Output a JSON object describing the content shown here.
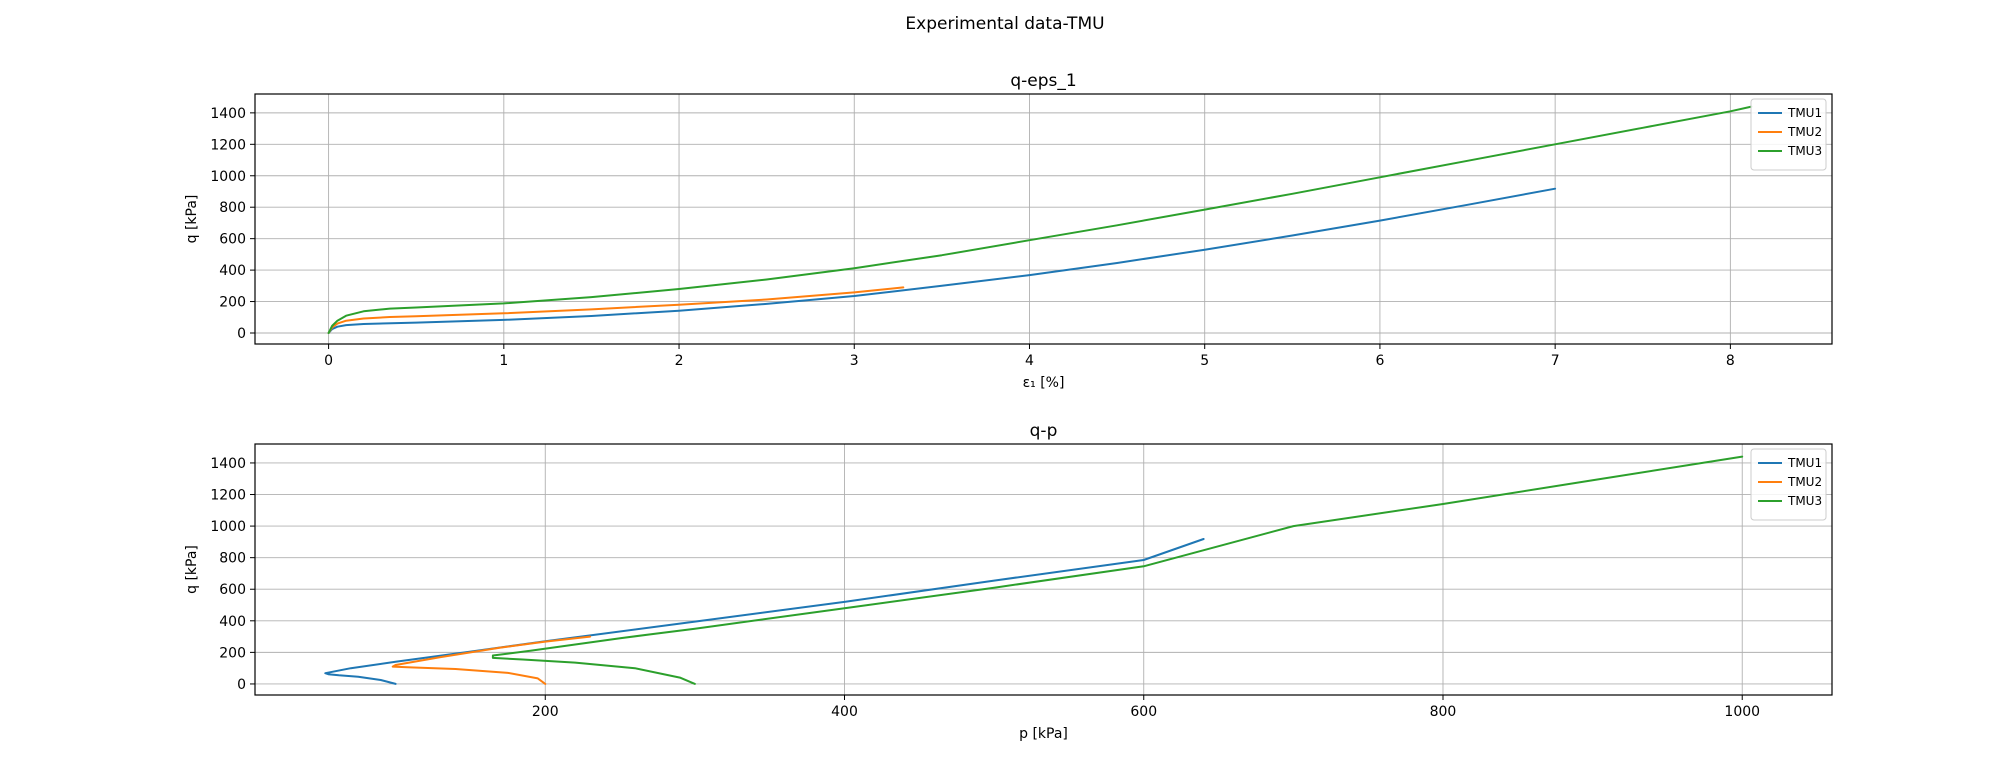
{
  "suptitle": "Experimental data-TMU",
  "chart_data": [
    {
      "type": "line",
      "title": "q-eps_1",
      "xlabel": "ε₁ [%]",
      "ylabel": "q [kPa]",
      "xlim": [
        -0.42,
        8.58
      ],
      "ylim": [
        -70,
        1520
      ],
      "xticks": [
        "0",
        "1",
        "2",
        "3",
        "4",
        "5",
        "6",
        "7",
        "8"
      ],
      "yticks": [
        "0",
        "200",
        "400",
        "600",
        "800",
        "1000",
        "1200",
        "1400"
      ],
      "grid": true,
      "legend_position": "top-right",
      "series": [
        {
          "name": "TMU1",
          "color": "#1f77b4",
          "x": [
            0,
            0.02,
            0.05,
            0.1,
            0.2,
            0.5,
            1,
            1.5,
            2,
            2.5,
            3,
            3.5,
            4,
            4.5,
            5,
            5.5,
            6,
            6.5,
            7
          ],
          "y": [
            0,
            25,
            40,
            50,
            57,
            66,
            83,
            108,
            142,
            185,
            235,
            300,
            368,
            445,
            530,
            620,
            715,
            815,
            918
          ]
        },
        {
          "name": "TMU2",
          "color": "#ff7f0e",
          "x": [
            0,
            0.02,
            0.05,
            0.1,
            0.2,
            0.35,
            0.5,
            1,
            1.5,
            2,
            2.5,
            3,
            3.28
          ],
          "y": [
            0,
            35,
            60,
            78,
            92,
            102,
            107,
            125,
            150,
            180,
            213,
            258,
            290
          ]
        },
        {
          "name": "TMU3",
          "color": "#2ca02c",
          "x": [
            0,
            0.02,
            0.05,
            0.1,
            0.2,
            0.35,
            0.5,
            1,
            1.5,
            2,
            2.5,
            3,
            3.5,
            4,
            4.5,
            5,
            5.5,
            6,
            6.5,
            7,
            7.5,
            8,
            8.12
          ],
          "y": [
            0,
            45,
            78,
            110,
            138,
            155,
            162,
            188,
            228,
            280,
            340,
            412,
            495,
            590,
            685,
            785,
            885,
            990,
            1095,
            1200,
            1305,
            1410,
            1440
          ]
        }
      ]
    },
    {
      "type": "line",
      "title": "q-p",
      "xlabel": "p [kPa]",
      "ylabel": "q [kPa]",
      "xlim": [
        6,
        1060
      ],
      "ylim": [
        -70,
        1520
      ],
      "xticks": [
        "200",
        "400",
        "600",
        "800",
        "1000"
      ],
      "yticks": [
        "0",
        "200",
        "400",
        "600",
        "800",
        "1000",
        "1200",
        "1400"
      ],
      "grid": true,
      "legend_position": "top-right",
      "series": [
        {
          "name": "TMU1",
          "color": "#1f77b4",
          "x": [
            100,
            90,
            75,
            62,
            55,
            53,
            70,
            100,
            150,
            200,
            300,
            400,
            500,
            600,
            640
          ],
          "y": [
            0,
            25,
            45,
            55,
            62,
            68,
            100,
            140,
            205,
            270,
            395,
            520,
            655,
            785,
            918
          ]
        },
        {
          "name": "TMU2",
          "color": "#ff7f0e",
          "x": [
            200,
            195,
            175,
            140,
            110,
            98,
            100,
            130,
            170,
            200,
            230
          ],
          "y": [
            0,
            35,
            70,
            95,
            105,
            110,
            120,
            170,
            230,
            268,
            300
          ]
        },
        {
          "name": "TMU3",
          "color": "#2ca02c",
          "x": [
            300,
            290,
            260,
            220,
            185,
            165,
            165,
            190,
            250,
            300,
            400,
            500,
            600,
            700,
            800,
            900,
            1000
          ],
          "y": [
            0,
            40,
            100,
            135,
            155,
            165,
            180,
            210,
            290,
            350,
            480,
            610,
            745,
            1000,
            1140,
            1290,
            1440
          ]
        }
      ]
    }
  ]
}
